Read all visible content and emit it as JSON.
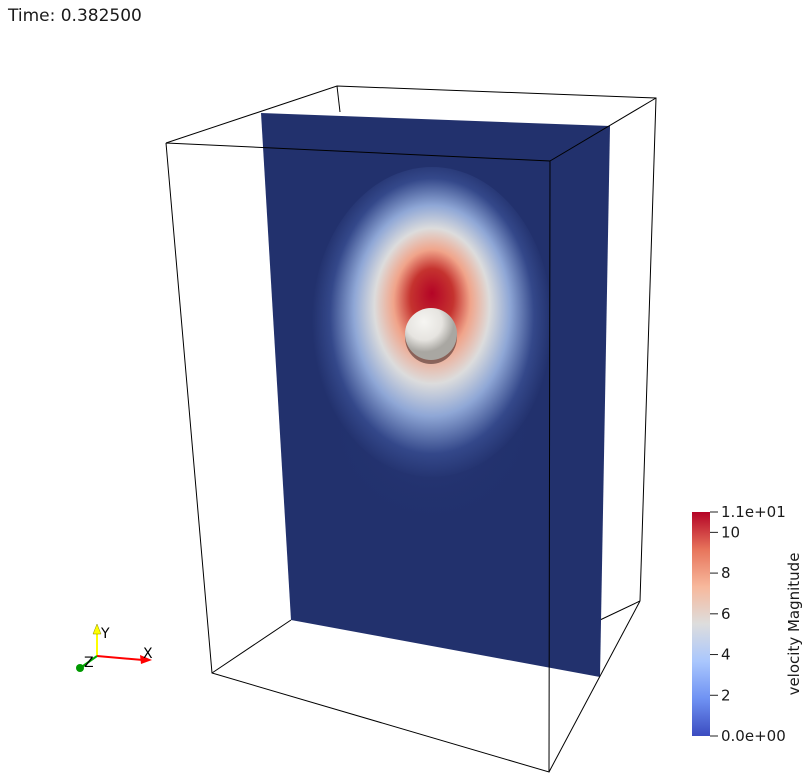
{
  "viewport": {
    "time_label": "Time: 0.382500"
  },
  "colorbar": {
    "title": "velocity Magnitude",
    "range": [
      0,
      11
    ],
    "ticks": [
      {
        "value": 11,
        "label": "1.1e+01"
      },
      {
        "value": 10,
        "label": "10"
      },
      {
        "value": 8,
        "label": "8"
      },
      {
        "value": 6,
        "label": "6"
      },
      {
        "value": 4,
        "label": "4"
      },
      {
        "value": 2,
        "label": "2"
      },
      {
        "value": 0,
        "label": "0.0e+00"
      }
    ],
    "colormap": [
      "#3b4cc0",
      "#6f92f3",
      "#aac7fd",
      "#dddddd",
      "#f7b89c",
      "#e7745b",
      "#b40426"
    ]
  },
  "orientation_axes": {
    "x_label": "X",
    "y_label": "Y",
    "z_label": "Z",
    "x_color": "#ff0000",
    "y_color": "#ffff00",
    "z_color": "#00aa00"
  },
  "colors": {
    "slice_background": "#22316d",
    "sphere": "#e6e4e0",
    "bounding_box": "#000000"
  }
}
